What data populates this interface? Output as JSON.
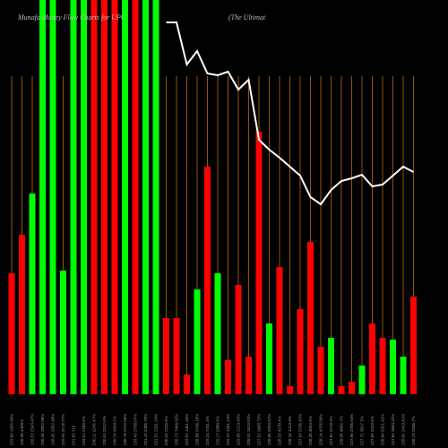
{
  "chart_data": {
    "type": "bar",
    "title": "Munafa Money Flow Charts for UPC",
    "subtitle": "(The Ultimat",
    "categories": [
      "229.09 1955.40%",
      "226.08 4309.9",
      "226.57 2543.47%",
      "226.49 3992.96%",
      "228.45 3262.48%",
      "229.94 3716.77%",
      "231.02 716",
      "233.51 2180.5%",
      "230.11 2245.47%",
      "230.51 2512.6%",
      "230.74 3994.2%",
      "230.78 2742.56%",
      "233.43 2798.07%",
      "231.47 2485.75%",
      "231.51 2261.24%",
      "230.31 2245.6%",
      "228.73 7408.92%",
      "229.97 1361.49%",
      "228.88 2706.16%",
      "229.24 7331.4%",
      "229.17 2880.5%",
      "229.37 1251.14%",
      "229.65 1213.93%",
      "228.51 1819.53%",
      "227.51 2668.72%",
      "228.86 3294.47%",
      "228.53 4270.4%",
      "228.16 4313.8%",
      "227.93 3736.42%",
      "228.25 3094.5%",
      "228.14 4376.89%",
      "227.82 3718.3%",
      "228.05 4082.7%",
      "227.96 2785.94%",
      "227.71 3817.3%",
      "227.69 3433.6%",
      "228.04 2921.42%",
      "227.84 3684.22%",
      "228.01 2413.41%",
      "228.13 2596.7%"
    ],
    "series": [
      {
        "name": "Money Flow",
        "values": [
          135,
          178,
          224,
          440,
          440,
          138,
          440,
          440,
          440,
          440,
          440,
          440,
          440,
          440,
          440,
          85,
          85,
          22,
          117,
          254,
          135,
          38,
          122,
          42,
          293,
          79,
          142,
          9,
          95,
          170,
          53,
          63,
          9,
          14,
          32,
          79,
          63,
          61,
          42,
          109
        ],
        "colors": [
          "#ff0000",
          "#ff0000",
          "#00ff00",
          "#00ff00",
          "#00ff00",
          "#00ff00",
          "#00ff00",
          "#00ff00",
          "#ff0000",
          "#ff0000",
          "#ff0000",
          "#00ff00",
          "#ff0000",
          "#00ff00",
          "#00ff00",
          "#ff0000",
          "#ff0000",
          "#ff0000",
          "#00ff00",
          "#ff0000",
          "#00ff00",
          "#ff0000",
          "#ff0000",
          "#ff0000",
          "#ff0000",
          "#00ff00",
          "#ff0000",
          "#ff0000",
          "#ff0000",
          "#ff0000",
          "#ff0000",
          "#00ff00",
          "#ff0000",
          "#ff0000",
          "#00ff00",
          "#ff0000",
          "#ff0000",
          "#00ff00",
          "#00ff00",
          "#ff0000"
        ]
      },
      {
        "name": "Price",
        "type": "line",
        "color": "#ffffff",
        "values": [
          null,
          null,
          null,
          null,
          null,
          null,
          null,
          null,
          null,
          null,
          null,
          null,
          null,
          null,
          null,
          415,
          415,
          368,
          383,
          358,
          356,
          360,
          340,
          351,
          284,
          273,
          264,
          254,
          244,
          220,
          212,
          228,
          238,
          241,
          245,
          232,
          234,
          244,
          254,
          248
        ]
      }
    ],
    "ylim": [
      0,
      440
    ],
    "separator_color": "#b8690b"
  }
}
